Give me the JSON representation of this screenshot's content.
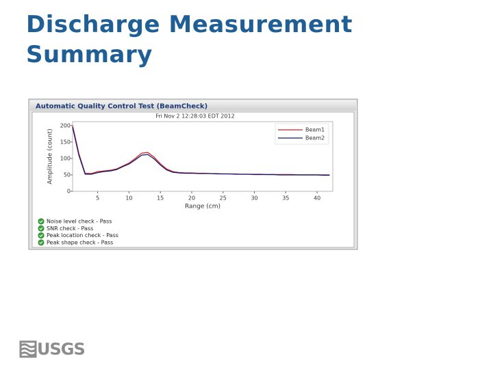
{
  "slide_title": "Discharge Measurement Summary",
  "panel_title": "Automatic Quality Control Test (BeamCheck)",
  "chart_data": {
    "type": "line",
    "title": "Fri Nov 2 12:28:03 EDT 2012",
    "x_label": "Range (cm)",
    "y_label": "Amplitude (count)",
    "x": [
      1,
      2,
      3,
      4,
      5,
      6,
      7,
      8,
      9,
      10,
      11,
      12,
      13,
      14,
      15,
      16,
      17,
      18,
      19,
      20,
      21,
      22,
      23,
      24,
      25,
      26,
      27,
      28,
      29,
      30,
      31,
      32,
      33,
      34,
      35,
      36,
      37,
      38,
      39,
      40,
      41,
      42
    ],
    "series": [
      {
        "name": "Beam1",
        "color": "#d42020",
        "values": [
          200,
          115,
          55,
          54,
          60,
          62,
          64,
          68,
          77,
          86,
          100,
          116,
          118,
          104,
          84,
          68,
          60,
          57,
          56,
          56,
          55,
          55,
          54,
          54,
          53,
          53,
          53,
          52,
          52,
          52,
          52,
          51,
          51,
          51,
          51,
          51,
          50,
          50,
          50,
          50,
          50,
          50
        ]
      },
      {
        "name": "Beam2",
        "color": "#101a70",
        "values": [
          195,
          110,
          52,
          52,
          57,
          60,
          62,
          66,
          75,
          83,
          96,
          110,
          112,
          99,
          80,
          65,
          58,
          56,
          55,
          55,
          54,
          54,
          54,
          53,
          53,
          53,
          52,
          52,
          52,
          51,
          51,
          51,
          51,
          50,
          50,
          50,
          50,
          50,
          50,
          50,
          49,
          49
        ]
      }
    ],
    "xlim": [
      1,
      42.5
    ],
    "xticks": [
      5,
      10,
      15,
      20,
      25,
      30,
      35,
      40
    ],
    "ylim": [
      0,
      212
    ],
    "yticks": [
      0,
      50,
      100,
      150,
      200
    ],
    "legend": "upper right"
  },
  "checks": [
    "Noise level check - Pass",
    "SNR check - Pass",
    "Peak location check - Pass",
    "Peak shape check - Pass"
  ],
  "logo": "USGS"
}
